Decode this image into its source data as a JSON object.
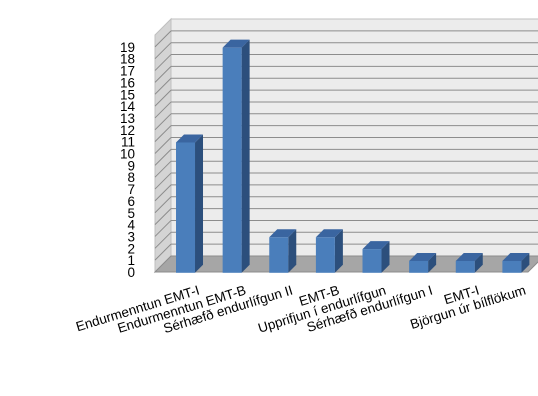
{
  "chart_data": {
    "type": "bar",
    "style": "3d-column",
    "title": "",
    "xlabel": "",
    "ylabel": "",
    "ylim": [
      0,
      20
    ],
    "yticks": [
      0,
      1,
      2,
      3,
      4,
      5,
      6,
      7,
      8,
      9,
      10,
      11,
      12,
      13,
      14,
      15,
      16,
      17,
      18,
      19
    ],
    "grid": true,
    "legend": "none",
    "categories": [
      "Endurmenntun EMT-I",
      "Endurmenntun EMT-B",
      "Sérhæfð endurlífgun II",
      "EMT-B",
      "Upprifjun í endurlífgun",
      "Sérhæfð endurlífgun I",
      "EMT-I",
      "Björgun úr bílflökum"
    ],
    "values": [
      11,
      19,
      3,
      3,
      2,
      1,
      1,
      1
    ],
    "colors": {
      "bar_front": "#4a7ebb",
      "bar_side": "#2c4f7c",
      "bar_top": "#3a65a0",
      "back_wall": "#ececec",
      "side_wall": "#d4d4d4",
      "floor": "#a6a6a6",
      "grid": "#8c8c8c"
    }
  }
}
